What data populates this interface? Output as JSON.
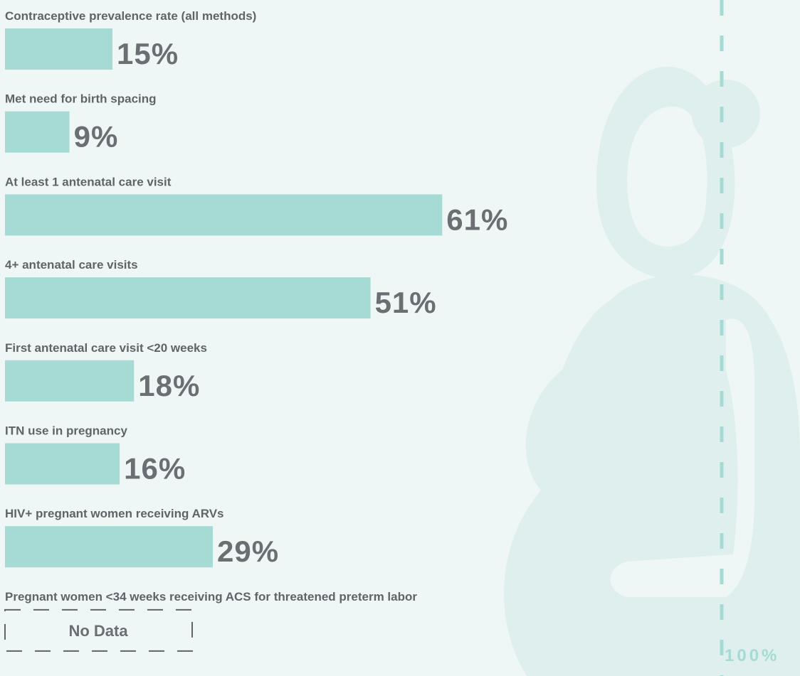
{
  "chart_data": {
    "type": "bar",
    "orientation": "horizontal",
    "categories": [
      "Contraceptive prevalence rate (all methods)",
      "Met need for birth spacing",
      "At least 1 antenatal care visit",
      "4+ antenatal care visits",
      "First antenatal care visit <20 weeks",
      "ITN use in pregnancy",
      "HIV+ pregnant women receiving ARVs",
      "Pregnant women <34 weeks receiving ACS for threatened preterm labor"
    ],
    "values": [
      15,
      9,
      61,
      51,
      18,
      16,
      29,
      null
    ],
    "value_labels": [
      "15%",
      "9%",
      "61%",
      "51%",
      "18%",
      "16%",
      "29%",
      "No Data"
    ],
    "color": "#a6dbd5",
    "xlim": [
      0,
      100
    ],
    "xticks": [
      {
        "value": 100,
        "label": "100%"
      }
    ]
  }
}
